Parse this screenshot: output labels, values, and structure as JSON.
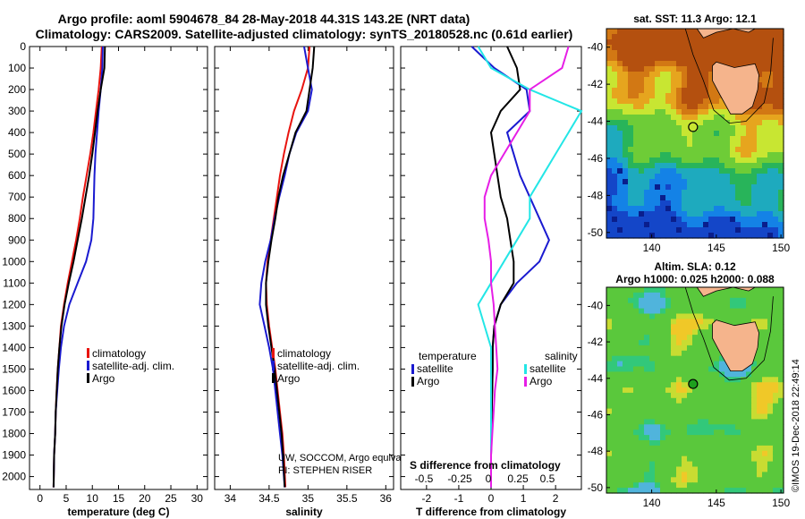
{
  "title_line1": "Argo profile: aoml 5904678_84 28-May-2018 44.31S 143.2E (NRT data)",
  "title_line2": "Climatology: CARS2009. Satellite-adjusted climatology: synTS_20180528.nc (0.61d earlier)",
  "colors": {
    "red": "#e8140f",
    "blue": "#1a1ad0",
    "black": "#000000",
    "cyan": "#23e6e6",
    "magenta": "#e61ee6"
  },
  "depth_ticks": [
    0,
    100,
    200,
    300,
    400,
    500,
    600,
    700,
    800,
    900,
    1000,
    1100,
    1200,
    1300,
    1400,
    1500,
    1600,
    1700,
    1800,
    1900,
    2000
  ],
  "chart_data": [
    {
      "type": "line",
      "name": "temperature",
      "xlabel": "temperature (deg C)",
      "ylabel": "depth",
      "xlim": [
        -2,
        32
      ],
      "ylim": [
        2060,
        0
      ],
      "xticks": [
        0,
        5,
        10,
        15,
        20,
        25,
        30
      ],
      "legend": [
        "climatology",
        "satellite-adj. clim.",
        "Argo"
      ],
      "series": [
        {
          "name": "climatology",
          "color": "red",
          "x": [
            11.8,
            11.6,
            11.2,
            10.7,
            10.2,
            9.6,
            8.9,
            8.2,
            7.6,
            6.9,
            6.1,
            5.3,
            4.6,
            4.0,
            3.7,
            3.4,
            3.2,
            3.0,
            2.9,
            2.7,
            2.6
          ],
          "y": [
            0,
            100,
            200,
            300,
            400,
            500,
            600,
            700,
            800,
            900,
            1000,
            1100,
            1200,
            1300,
            1400,
            1500,
            1600,
            1700,
            1800,
            1900,
            2050
          ]
        },
        {
          "name": "satellite-adj. clim.",
          "color": "blue",
          "x": [
            12.0,
            11.9,
            11.6,
            11.2,
            10.9,
            10.6,
            10.4,
            10.3,
            10.2,
            9.8,
            8.8,
            7.2,
            5.6,
            4.6,
            4.0,
            3.6,
            3.3,
            3.0,
            2.9,
            2.7,
            2.6
          ],
          "y": [
            0,
            100,
            200,
            300,
            400,
            500,
            600,
            700,
            800,
            900,
            1000,
            1100,
            1200,
            1300,
            1400,
            1500,
            1600,
            1700,
            1800,
            1900,
            2050
          ]
        },
        {
          "name": "Argo",
          "color": "black",
          "x": [
            12.4,
            12.3,
            11.6,
            11.0,
            10.5,
            10.0,
            9.4,
            8.7,
            8.0,
            7.2,
            6.4,
            5.5,
            4.7,
            4.1,
            3.7,
            3.4,
            3.2,
            3.0,
            2.9,
            2.7,
            2.6
          ],
          "y": [
            0,
            100,
            200,
            300,
            400,
            500,
            600,
            700,
            800,
            900,
            1000,
            1100,
            1200,
            1300,
            1400,
            1500,
            1600,
            1700,
            1800,
            1900,
            2050
          ]
        }
      ]
    },
    {
      "type": "line",
      "name": "salinity",
      "xlabel": "salinity",
      "ylabel": "depth",
      "xlim": [
        33.8,
        36.1
      ],
      "ylim": [
        2060,
        0
      ],
      "xticks": [
        34,
        34.5,
        35,
        35.5,
        36
      ],
      "xticklabels": [
        "34",
        "34.5",
        "35",
        "35.5",
        "36"
      ],
      "legend": [
        "climatology",
        "satellite-adj. clim.",
        "Argo"
      ],
      "series": [
        {
          "name": "climatology",
          "color": "red",
          "x": [
            35.02,
            35.0,
            34.92,
            34.82,
            34.75,
            34.69,
            34.64,
            34.6,
            34.56,
            34.52,
            34.48,
            34.46,
            34.47,
            34.5,
            34.54,
            34.58,
            34.61,
            34.64,
            34.67,
            34.69,
            34.71
          ],
          "y": [
            0,
            100,
            200,
            300,
            400,
            500,
            600,
            700,
            800,
            900,
            1000,
            1100,
            1200,
            1300,
            1400,
            1500,
            1600,
            1700,
            1800,
            1900,
            2050
          ]
        },
        {
          "name": "satellite-adj. clim.",
          "color": "blue",
          "x": [
            34.95,
            35.0,
            35.05,
            35.0,
            34.85,
            34.76,
            34.7,
            34.63,
            34.57,
            34.52,
            34.45,
            34.4,
            34.38,
            34.44,
            34.5,
            34.55,
            34.58,
            34.61,
            34.64,
            34.67,
            34.7
          ],
          "y": [
            0,
            100,
            200,
            300,
            400,
            500,
            600,
            700,
            800,
            900,
            1000,
            1100,
            1200,
            1300,
            1400,
            1500,
            1600,
            1700,
            1800,
            1900,
            2050
          ]
        },
        {
          "name": "Argo",
          "color": "black",
          "x": [
            35.08,
            35.06,
            35.02,
            34.98,
            34.84,
            34.76,
            34.68,
            34.62,
            34.58,
            34.53,
            34.49,
            34.46,
            34.46,
            34.49,
            34.53,
            34.57,
            34.6,
            34.63,
            34.66,
            34.68,
            34.7
          ],
          "y": [
            0,
            100,
            200,
            300,
            400,
            500,
            600,
            700,
            800,
            900,
            1000,
            1100,
            1200,
            1300,
            1400,
            1500,
            1600,
            1700,
            1800,
            1900,
            2050
          ]
        }
      ],
      "notes": [
        "UW, SOCCOM, Argo equivalent",
        "PI: STEPHEN RISER"
      ]
    },
    {
      "type": "line",
      "name": "differences",
      "xlabel": "T difference from climatology",
      "xlabel_top": "S difference from climatology",
      "xlim": [
        -2.8,
        2.8
      ],
      "ylim": [
        2060,
        0
      ],
      "xticks": [
        -2,
        -1,
        0,
        1,
        2
      ],
      "s_ticks": [
        -0.5,
        -0.25,
        0,
        0.25,
        0.5
      ],
      "s_ticklabels": [
        "-0.5",
        "-0.25",
        "0",
        "0.25",
        "0.5"
      ],
      "legend_titles": [
        "temperature",
        "salinity"
      ],
      "legend": [
        "satellite",
        "Argo",
        "satellite",
        "Argo"
      ],
      "series": [
        {
          "name": "T satellite",
          "color": "blue",
          "x": [
            -0.6,
            0.1,
            1.1,
            1.2,
            0.5,
            0.7,
            0.9,
            1.2,
            1.5,
            1.8,
            1.5,
            0.8,
            0.3,
            0.1,
            0.05,
            0.05,
            0.03,
            0.02,
            0.01,
            0.0,
            0.0
          ],
          "y": [
            0,
            100,
            200,
            300,
            400,
            500,
            600,
            700,
            800,
            900,
            1000,
            1100,
            1200,
            1300,
            1400,
            1500,
            1600,
            1700,
            1800,
            1900,
            2050
          ]
        },
        {
          "name": "T Argo",
          "color": "black",
          "x": [
            0.5,
            0.8,
            0.9,
            0.3,
            0.0,
            0.1,
            0.2,
            0.3,
            0.5,
            0.6,
            0.7,
            0.7,
            0.3,
            0.1,
            0.05,
            0.05,
            0.04,
            0.02,
            0.01,
            0.0,
            0.0
          ],
          "y": [
            0,
            100,
            200,
            300,
            400,
            500,
            600,
            700,
            800,
            900,
            1000,
            1100,
            1200,
            1300,
            1400,
            1500,
            1600,
            1700,
            1800,
            1900,
            2050
          ]
        },
        {
          "name": "S satellite",
          "color": "cyan",
          "x": [
            -0.1,
            0.0,
            0.3,
            0.7,
            0.6,
            0.5,
            0.4,
            0.3,
            0.3,
            0.2,
            0.1,
            0.0,
            -0.1,
            -0.05,
            0.0,
            0.0,
            0.0,
            0.0,
            0.0,
            0.0,
            0.0
          ],
          "y": [
            0,
            100,
            200,
            300,
            400,
            500,
            600,
            700,
            800,
            900,
            1000,
            1100,
            1200,
            1300,
            1400,
            1500,
            1600,
            1700,
            1800,
            1900,
            2050
          ]
        },
        {
          "name": "S Argo",
          "color": "magenta",
          "x": [
            0.6,
            0.55,
            0.3,
            0.3,
            0.2,
            0.1,
            0.0,
            -0.05,
            -0.05,
            -0.02,
            0.0,
            0.0,
            0.02,
            0.03,
            0.04,
            0.05,
            0.03,
            0.02,
            0.01,
            0.0,
            0.0
          ],
          "y": [
            0,
            100,
            200,
            300,
            400,
            500,
            600,
            700,
            800,
            900,
            1000,
            1100,
            1200,
            1300,
            1400,
            1500,
            1600,
            1700,
            1800,
            1900,
            2050
          ]
        }
      ]
    },
    {
      "type": "heatmap",
      "name": "sst-map",
      "title": "sat. SST: 11.3 Argo: 12.1",
      "xlim": [
        136.5,
        150.2
      ],
      "ylim": [
        -50.3,
        -39
      ],
      "xticks": [
        140,
        145,
        150
      ],
      "yticks": [
        -40,
        -42,
        -44,
        -46,
        -48,
        -50
      ],
      "marker": {
        "lon": 143.2,
        "lat": -44.31
      }
    },
    {
      "type": "heatmap",
      "name": "sla-map",
      "title_line1": "Altim. SLA: 0.12",
      "title_line2": "Argo h1000: 0.025 h2000: 0.088",
      "xlim": [
        136.5,
        150.2
      ],
      "ylim": [
        -50.3,
        -39
      ],
      "xticks": [
        140,
        145,
        150
      ],
      "yticks": [
        -40,
        -42,
        -44,
        -46,
        -48,
        -50
      ],
      "marker": {
        "lon": 143.2,
        "lat": -44.31
      }
    }
  ],
  "credit": "©IMOS 19-Dec-2018 22:49:14"
}
